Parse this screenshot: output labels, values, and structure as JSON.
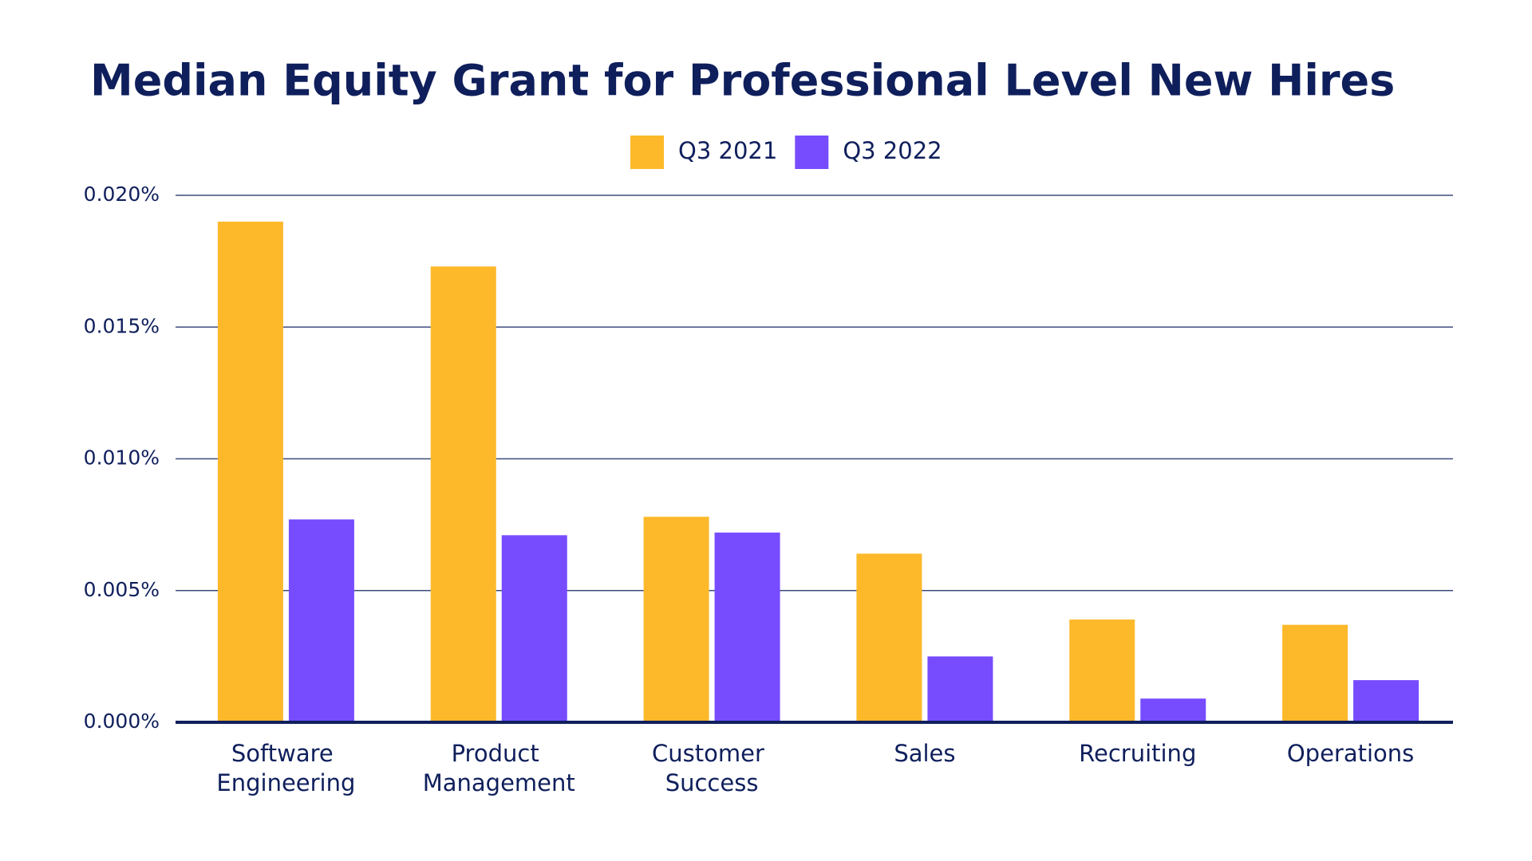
{
  "chart_data": {
    "type": "bar",
    "title": "Median Equity Grant for Professional Level New Hires",
    "categories": [
      "Software Engineering",
      "Product Management",
      "Customer Success",
      "Sales",
      "Recruiting",
      "Operations"
    ],
    "series": [
      {
        "name": "Q3 2021",
        "color": "#fdb92a",
        "values": [
          0.019,
          0.0173,
          0.0078,
          0.0064,
          0.0039,
          0.0037
        ]
      },
      {
        "name": "Q3 2022",
        "color": "#774cff",
        "values": [
          0.0077,
          0.0071,
          0.0072,
          0.0025,
          0.0009,
          0.0016
        ]
      }
    ],
    "ylim": [
      0,
      0.02
    ],
    "yticks": [
      {
        "value": 0,
        "label": "0.000%"
      },
      {
        "value": 0.005,
        "label": "0.005%"
      },
      {
        "value": 0.01,
        "label": "0.010%"
      },
      {
        "value": 0.015,
        "label": "0.015%"
      },
      {
        "value": 0.02,
        "label": "0.020%"
      }
    ],
    "grid": true
  }
}
